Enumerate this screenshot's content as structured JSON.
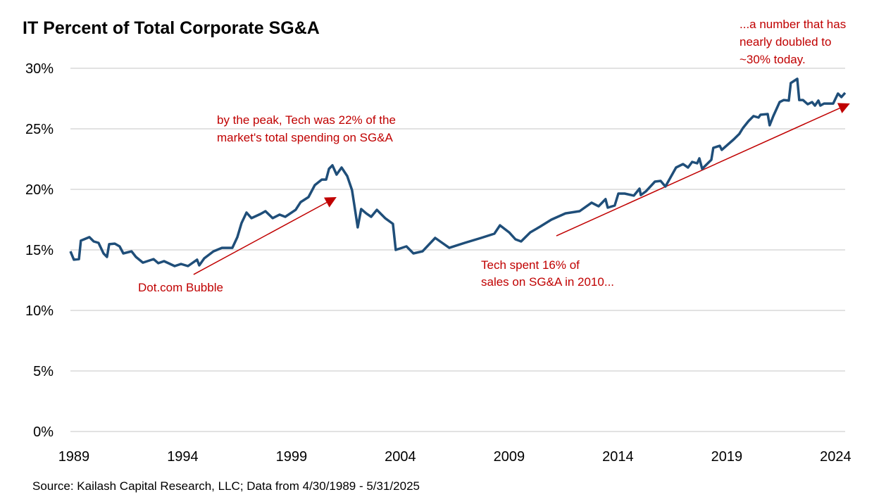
{
  "chart_data": {
    "type": "line",
    "title": "IT Percent of Total Corporate SG&A",
    "xlabel": "",
    "ylabel": "",
    "ylim": [
      0,
      30
    ],
    "xlim": [
      1988.84,
      2024.44
    ],
    "grid": true,
    "y_ticks": [
      0,
      5,
      10,
      15,
      20,
      25,
      30
    ],
    "y_tick_labels": [
      "0%",
      "5%",
      "10%",
      "15%",
      "20%",
      "25%",
      "30%"
    ],
    "x_ticks": [
      1989,
      1994,
      1999,
      2004,
      2009,
      2014,
      2019,
      2024
    ],
    "x_tick_labels": [
      "1989",
      "1994",
      "1999",
      "2004",
      "2009",
      "2014",
      "2019",
      "2024"
    ],
    "series": [
      {
        "name": "IT Percent of Total Corporate SG&A",
        "color": "#1F4E79",
        "points": [
          [
            1988.84,
            14.88
          ],
          [
            1989.0,
            14.19
          ],
          [
            1989.23,
            14.24
          ],
          [
            1989.32,
            15.76
          ],
          [
            1989.71,
            16.05
          ],
          [
            1989.91,
            15.7
          ],
          [
            1990.13,
            15.58
          ],
          [
            1990.36,
            14.71
          ],
          [
            1990.52,
            14.42
          ],
          [
            1990.62,
            15.47
          ],
          [
            1990.88,
            15.52
          ],
          [
            1991.1,
            15.29
          ],
          [
            1991.27,
            14.71
          ],
          [
            1991.65,
            14.88
          ],
          [
            1991.85,
            14.42
          ],
          [
            1992.17,
            13.95
          ],
          [
            1992.66,
            14.24
          ],
          [
            1992.88,
            13.9
          ],
          [
            1993.14,
            14.07
          ],
          [
            1993.63,
            13.66
          ],
          [
            1993.92,
            13.84
          ],
          [
            1994.24,
            13.66
          ],
          [
            1994.66,
            14.19
          ],
          [
            1994.76,
            13.72
          ],
          [
            1994.99,
            14.3
          ],
          [
            1995.41,
            14.88
          ],
          [
            1995.8,
            15.17
          ],
          [
            1996.28,
            15.17
          ],
          [
            1996.51,
            16.05
          ],
          [
            1996.7,
            17.21
          ],
          [
            1996.93,
            18.08
          ],
          [
            1997.16,
            17.62
          ],
          [
            1997.58,
            17.97
          ],
          [
            1997.8,
            18.2
          ],
          [
            1998.13,
            17.62
          ],
          [
            1998.45,
            17.91
          ],
          [
            1998.71,
            17.73
          ],
          [
            1999.19,
            18.31
          ],
          [
            1999.42,
            18.95
          ],
          [
            1999.78,
            19.36
          ],
          [
            2000.07,
            20.35
          ],
          [
            2000.39,
            20.81
          ],
          [
            2000.59,
            20.81
          ],
          [
            2000.72,
            21.69
          ],
          [
            2000.88,
            21.98
          ],
          [
            2001.07,
            21.22
          ],
          [
            2001.3,
            21.8
          ],
          [
            2001.56,
            21.1
          ],
          [
            2001.78,
            19.94
          ],
          [
            2001.88,
            18.78
          ],
          [
            2002.04,
            16.86
          ],
          [
            2002.2,
            18.37
          ],
          [
            2002.43,
            18.02
          ],
          [
            2002.66,
            17.73
          ],
          [
            2002.92,
            18.31
          ],
          [
            2003.3,
            17.62
          ],
          [
            2003.66,
            17.15
          ],
          [
            2003.79,
            15.0
          ],
          [
            2004.28,
            15.29
          ],
          [
            2004.6,
            14.71
          ],
          [
            2005.02,
            14.88
          ],
          [
            2005.6,
            15.99
          ],
          [
            2005.83,
            15.7
          ],
          [
            2006.25,
            15.17
          ],
          [
            2006.96,
            15.58
          ],
          [
            2007.71,
            15.99
          ],
          [
            2008.32,
            16.34
          ],
          [
            2008.58,
            17.03
          ],
          [
            2009.0,
            16.45
          ],
          [
            2009.29,
            15.87
          ],
          [
            2009.55,
            15.7
          ],
          [
            2009.97,
            16.45
          ],
          [
            2010.42,
            16.92
          ],
          [
            2010.94,
            17.5
          ],
          [
            2011.59,
            18.02
          ],
          [
            2012.24,
            18.2
          ],
          [
            2012.79,
            18.9
          ],
          [
            2013.11,
            18.6
          ],
          [
            2013.43,
            19.19
          ],
          [
            2013.53,
            18.49
          ],
          [
            2013.85,
            18.66
          ],
          [
            2014.02,
            19.65
          ],
          [
            2014.31,
            19.65
          ],
          [
            2014.73,
            19.48
          ],
          [
            2014.99,
            20.06
          ],
          [
            2015.05,
            19.53
          ],
          [
            2015.28,
            19.83
          ],
          [
            2015.7,
            20.64
          ],
          [
            2015.96,
            20.7
          ],
          [
            2016.18,
            20.23
          ],
          [
            2016.67,
            21.8
          ],
          [
            2016.99,
            22.09
          ],
          [
            2017.22,
            21.8
          ],
          [
            2017.41,
            22.27
          ],
          [
            2017.64,
            22.15
          ],
          [
            2017.74,
            22.56
          ],
          [
            2017.87,
            21.69
          ],
          [
            2018.29,
            22.44
          ],
          [
            2018.38,
            23.43
          ],
          [
            2018.68,
            23.6
          ],
          [
            2018.77,
            23.26
          ],
          [
            2019.32,
            24.13
          ],
          [
            2019.58,
            24.59
          ],
          [
            2019.74,
            25.06
          ],
          [
            2020.0,
            25.64
          ],
          [
            2020.23,
            26.05
          ],
          [
            2020.46,
            25.93
          ],
          [
            2020.55,
            26.16
          ],
          [
            2020.88,
            26.22
          ],
          [
            2020.97,
            25.29
          ],
          [
            2021.14,
            26.05
          ],
          [
            2021.43,
            27.21
          ],
          [
            2021.62,
            27.38
          ],
          [
            2021.85,
            27.33
          ],
          [
            2021.94,
            28.78
          ],
          [
            2022.24,
            29.13
          ],
          [
            2022.33,
            27.38
          ],
          [
            2022.5,
            27.38
          ],
          [
            2022.72,
            27.03
          ],
          [
            2022.92,
            27.21
          ],
          [
            2023.05,
            26.92
          ],
          [
            2023.21,
            27.33
          ],
          [
            2023.3,
            26.92
          ],
          [
            2023.47,
            27.09
          ],
          [
            2023.89,
            27.09
          ],
          [
            2024.11,
            27.91
          ],
          [
            2024.27,
            27.62
          ],
          [
            2024.44,
            27.97
          ]
        ]
      }
    ],
    "annotations": [
      {
        "lines": [
          "by the peak, Tech was 22% of the",
          "market's total spending on SG&A"
        ],
        "color": "#C00000"
      },
      {
        "lines": [
          "Dot.com Bubble"
        ],
        "color": "#C00000"
      },
      {
        "lines": [
          "Tech spent 16% of",
          "sales on SG&A in 2010..."
        ],
        "color": "#C00000"
      },
      {
        "lines": [
          "...a number that has",
          "nearly doubled to",
          "~30% today."
        ],
        "color": "#C00000"
      }
    ],
    "arrows": [
      {
        "from": [
          1994.5,
          12.97
        ],
        "to": [
          2001.07,
          19.36
        ],
        "color": "#C00000"
      },
      {
        "from": [
          2011.17,
          16.16
        ],
        "to": [
          2024.66,
          27.09
        ],
        "color": "#C00000"
      }
    ],
    "source": "Source: Kailash Capital Research, LLC; Data from 4/30/1989 - 5/31/2025"
  }
}
